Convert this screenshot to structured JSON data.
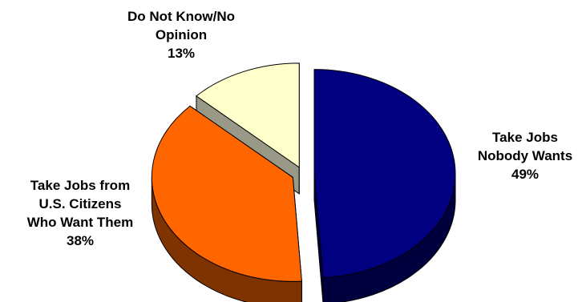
{
  "chart_data": {
    "type": "pie",
    "title": "",
    "slices": [
      {
        "lines": [
          "Take Jobs",
          "Nobody Wants"
        ],
        "percent_label": "49%",
        "value": 49,
        "color": "#000080",
        "side_color": "#00003f"
      },
      {
        "lines": [
          "Take Jobs from",
          "U.S. Citizens",
          "Who Want Them"
        ],
        "percent_label": "38%",
        "value": 38,
        "color": "#ff6600",
        "side_color": "#7f3300"
      },
      {
        "lines": [
          "Do Not Know/No",
          "Opinion"
        ],
        "percent_label": "13%",
        "value": 13,
        "color": "#ffffcc",
        "side_color": "#999988"
      }
    ],
    "style": "3d-exploded",
    "legend": "none"
  }
}
